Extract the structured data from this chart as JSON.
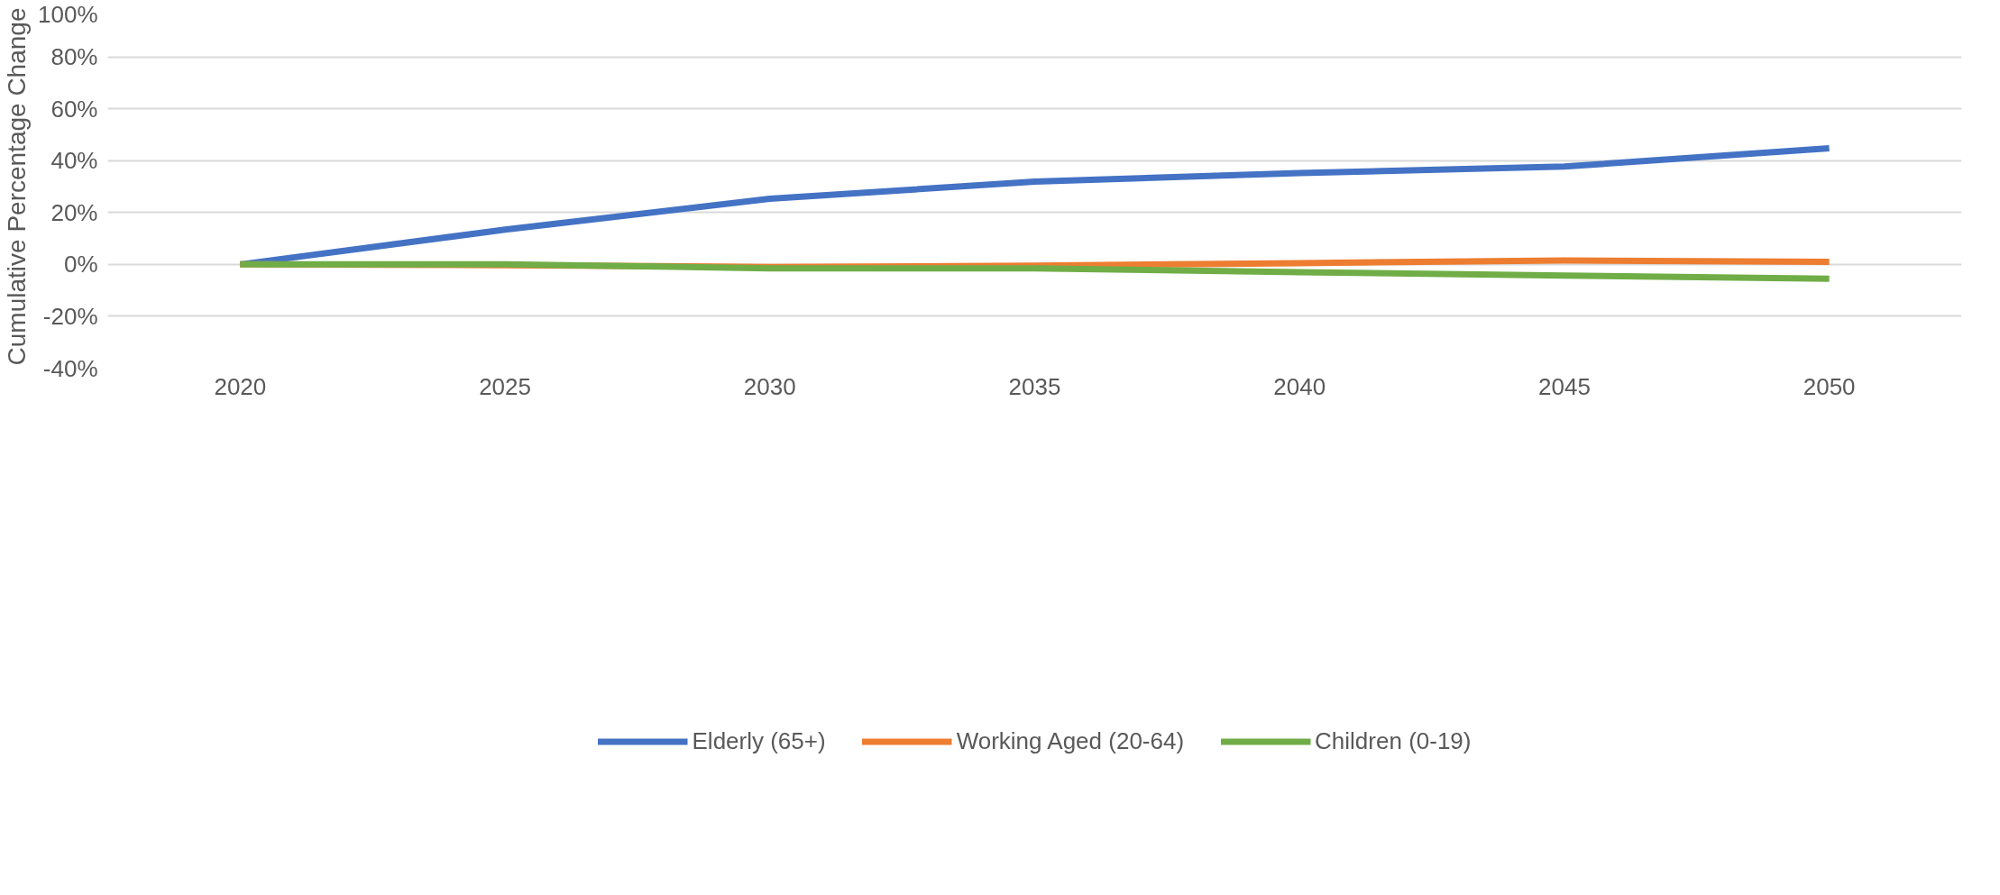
{
  "chart_data": {
    "type": "line",
    "ylabel": "Cumulative Percentage Change",
    "categories": [
      "2020",
      "2025",
      "2030",
      "2035",
      "2040",
      "2045",
      "2050"
    ],
    "series": [
      {
        "name": "Elderly (65+)",
        "color": "#4472c4",
        "values": [
          0,
          13.4,
          25.3,
          31.9,
          35.2,
          37.7,
          44.8
        ]
      },
      {
        "name": "Working Aged (20-64)",
        "color": "#ed7d31",
        "values": [
          0,
          -0.3,
          -1,
          -0.5,
          0.5,
          1.5,
          1
        ]
      },
      {
        "name": "Children (0-19)",
        "color": "#70ad47",
        "values": [
          0,
          0,
          -1.5,
          -1.5,
          -3,
          -4.3,
          -5.5
        ]
      }
    ],
    "ylim": [
      -40,
      100
    ],
    "yticks": [
      {
        "value": -40,
        "label": "-40%"
      },
      {
        "value": -20,
        "label": "-20%"
      },
      {
        "value": 0,
        "label": "0%"
      },
      {
        "value": 20,
        "label": "20%"
      },
      {
        "value": 40,
        "label": "40%"
      },
      {
        "value": 60,
        "label": "60%"
      },
      {
        "value": 80,
        "label": "80%"
      },
      {
        "value": 100,
        "label": "100%"
      }
    ],
    "grid": "y",
    "legend": "bottom",
    "marker": "none",
    "line_style": "solid"
  }
}
